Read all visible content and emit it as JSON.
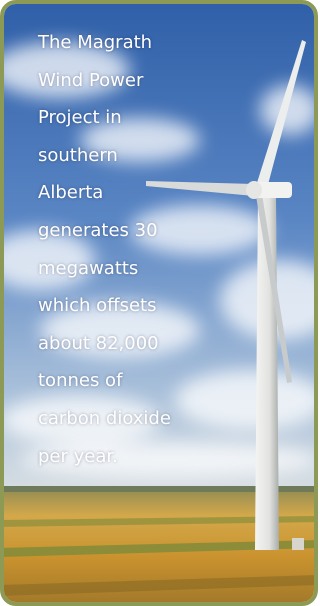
{
  "caption": {
    "lines": [
      "The Magrath",
      "Wind Power",
      "Project in",
      "southern",
      "Alberta",
      "generates 30",
      "megawatts",
      "which offsets",
      "about 82,000",
      "tonnes of",
      "carbon dioxide",
      "per year."
    ]
  }
}
